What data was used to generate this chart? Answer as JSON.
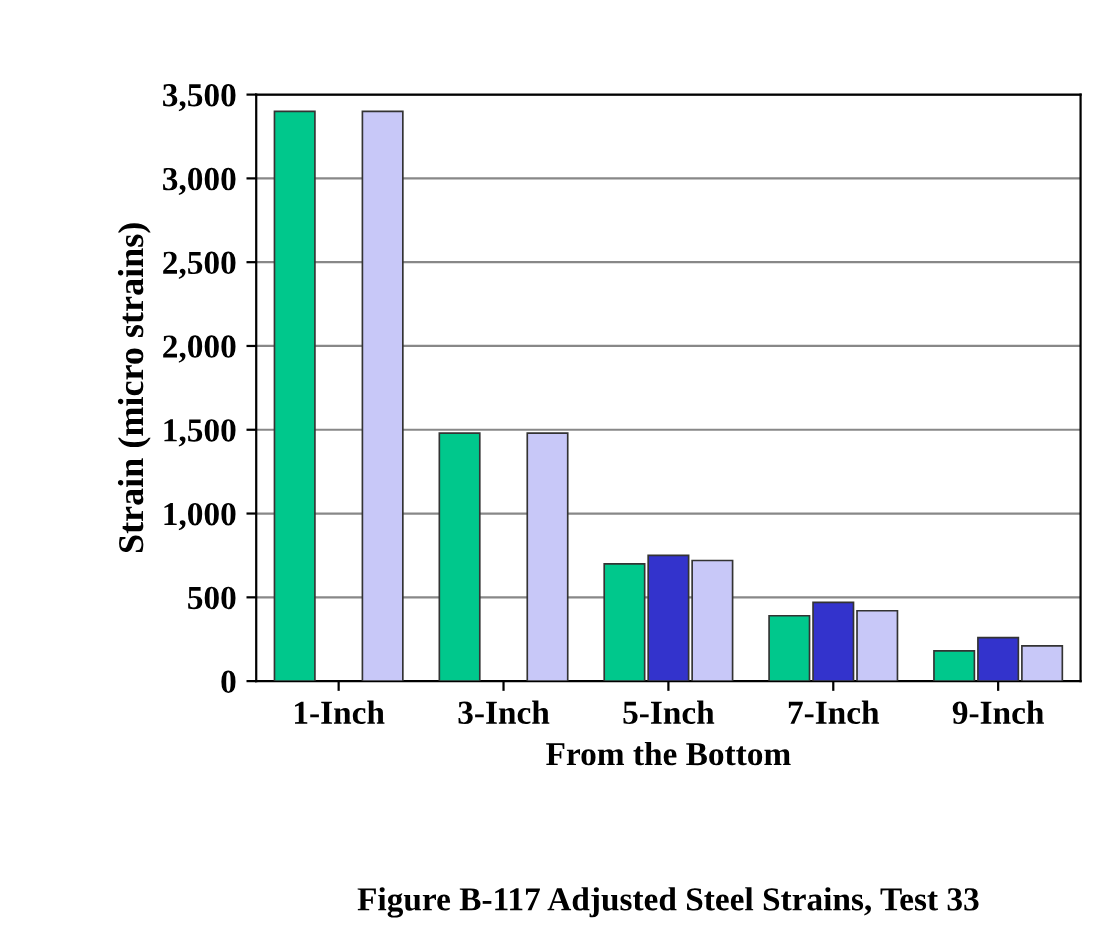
{
  "chart_data": {
    "type": "bar",
    "categories": [
      "1-Inch",
      "3-Inch",
      "5-Inch",
      "7-Inch",
      "9-Inch"
    ],
    "series": [
      {
        "color": "#00c88c",
        "values": [
          3400,
          1480,
          700,
          390,
          180
        ]
      },
      {
        "color": "#3333cc",
        "values": [
          null,
          null,
          750,
          470,
          260
        ]
      },
      {
        "color": "#c8c8f8",
        "values": [
          3400,
          1480,
          720,
          420,
          210
        ]
      }
    ],
    "xlabel": "From the Bottom",
    "ylabel": "Strain (micro strains)",
    "ylim": [
      0,
      3500
    ],
    "yticks": [
      {
        "value": 0,
        "label": "0"
      },
      {
        "value": 500,
        "label": "500"
      },
      {
        "value": 1000,
        "label": "1,000"
      },
      {
        "value": 1500,
        "label": "1,500"
      },
      {
        "value": 2000,
        "label": "2,000"
      },
      {
        "value": 2500,
        "label": "2,500"
      },
      {
        "value": 3000,
        "label": "3,000"
      },
      {
        "value": 3500,
        "label": "3,500"
      }
    ],
    "grid": "y",
    "annotations": [
      "Figure B-117 Adjusted Steel Strains, Test 33"
    ]
  }
}
